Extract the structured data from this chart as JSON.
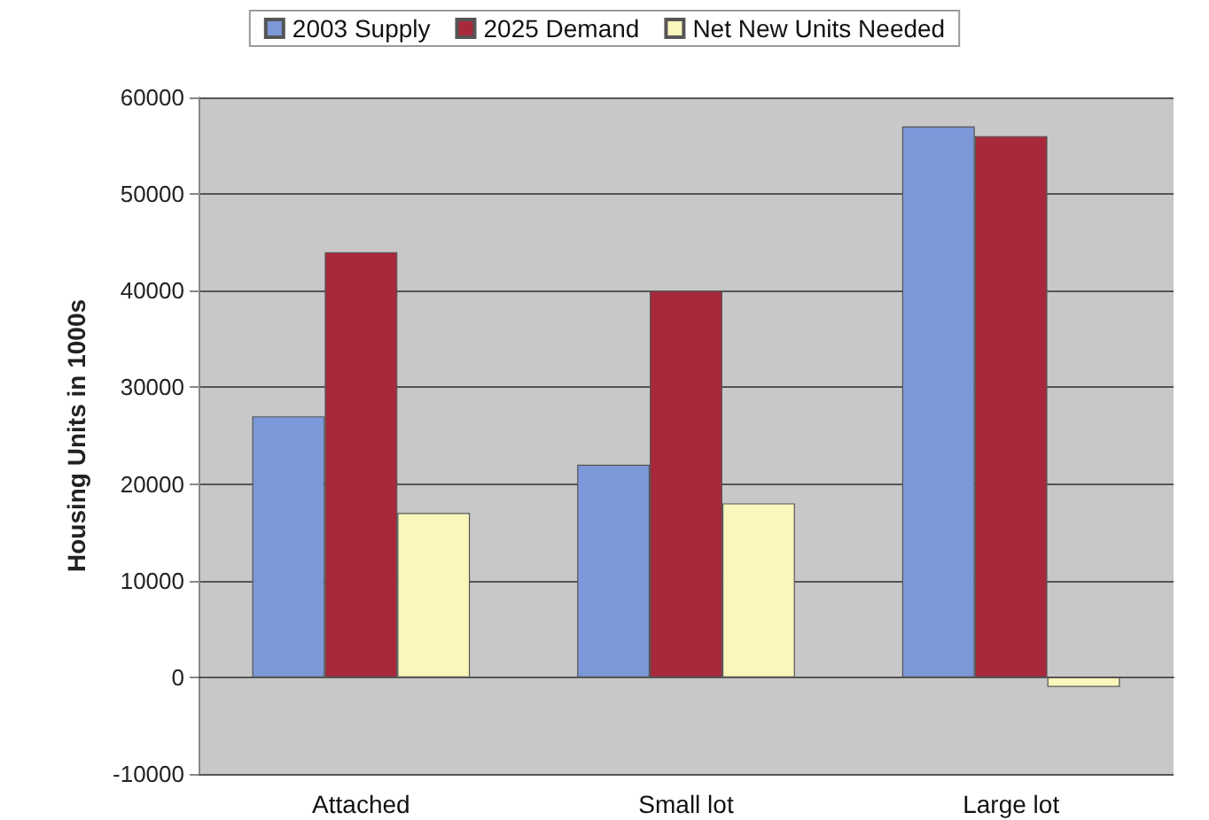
{
  "chart_data": {
    "type": "bar",
    "ylabel": "Housing Units in 1000s",
    "categories": [
      "Attached",
      "Small lot",
      "Large lot"
    ],
    "series": [
      {
        "name": "2003 Supply",
        "color": "#7d98d8",
        "values": [
          27000,
          22000,
          57000
        ]
      },
      {
        "name": "2025 Demand",
        "color": "#a8283c",
        "values": [
          44000,
          40000,
          56000
        ]
      },
      {
        "name": "Net New Units Needed",
        "color": "#fbf6bc",
        "values": [
          17000,
          18000,
          -1000
        ]
      }
    ],
    "ylim": [
      -10000,
      60000
    ],
    "yticks": [
      -10000,
      0,
      10000,
      20000,
      30000,
      40000,
      50000,
      60000
    ],
    "grid": "y",
    "legend": "top"
  }
}
